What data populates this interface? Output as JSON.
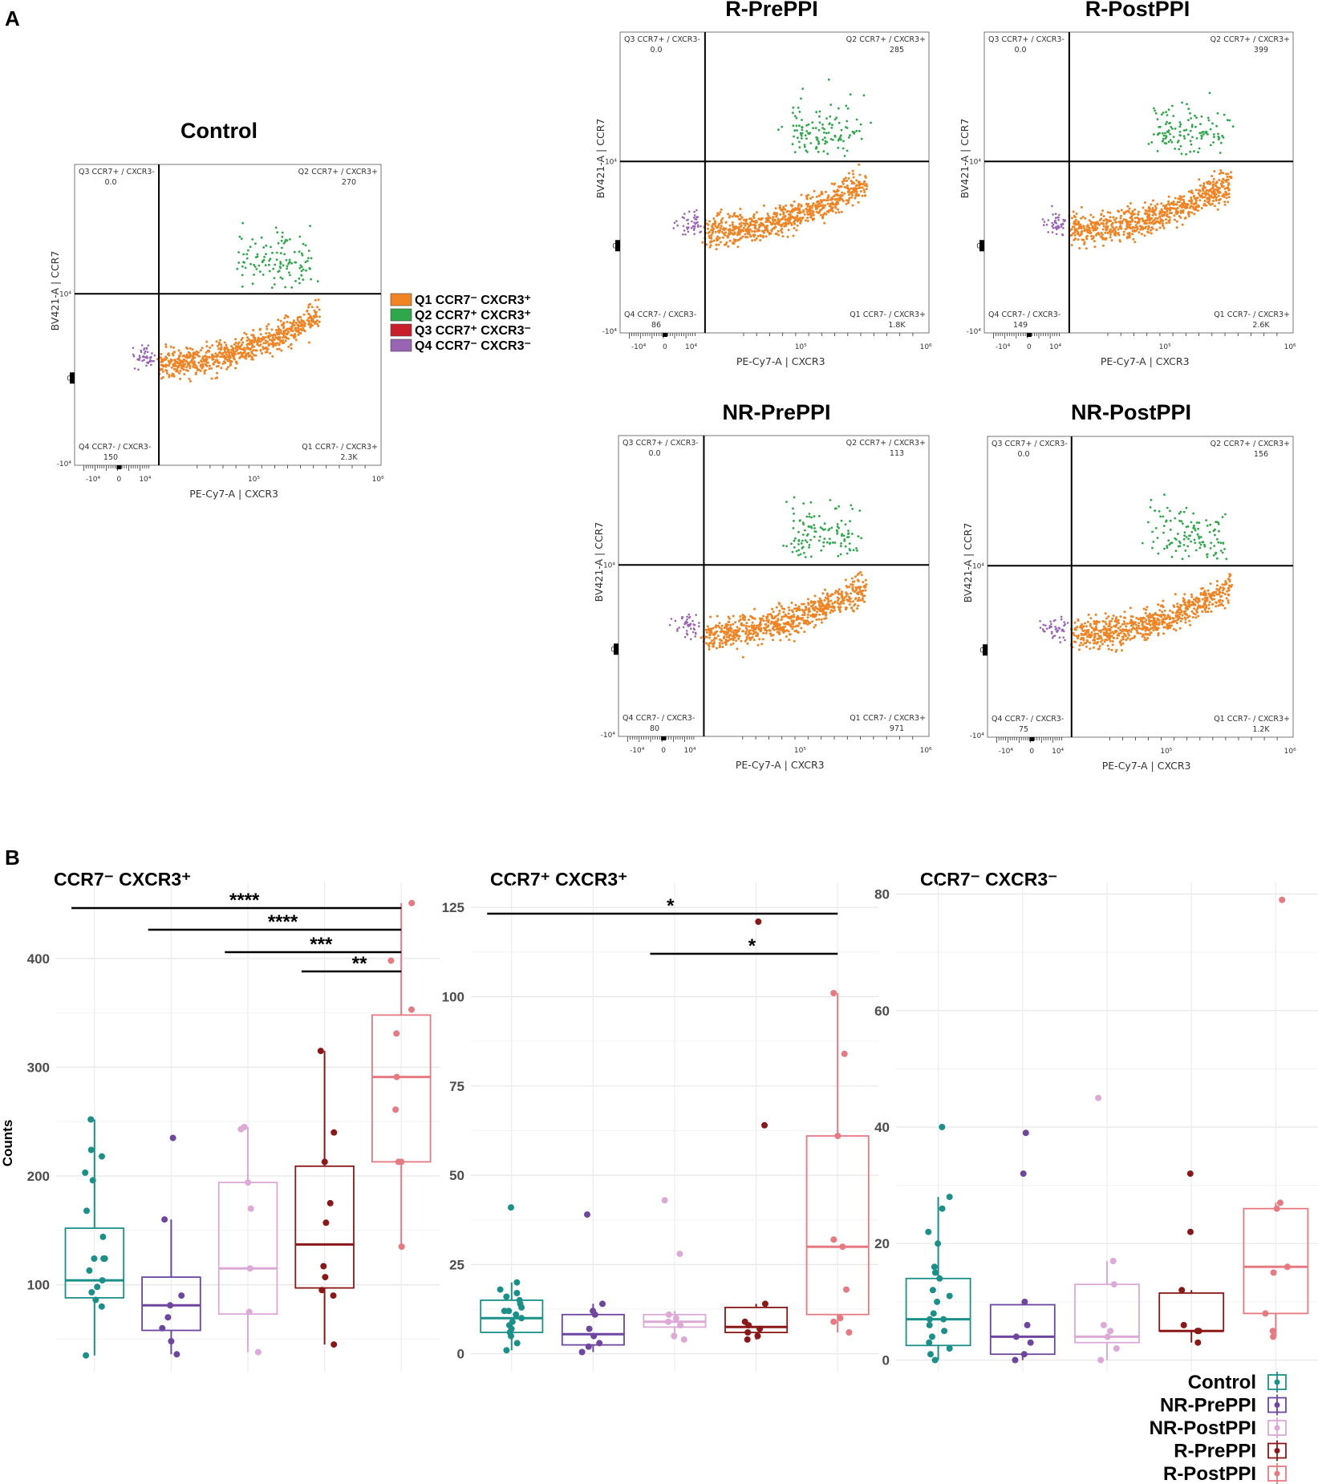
{
  "panel_labels": {
    "a": "A",
    "b": "B"
  },
  "flow": {
    "x_axis_label": "PE-Cy7-A  |  CXCR3",
    "y_axis_label": "BV421-A  |  CCR7",
    "x_ticks": [
      "-10⁴",
      "0",
      "10⁴",
      "10⁵",
      "10⁶"
    ],
    "y_ticks": [
      "10⁴",
      "0",
      "-10⁴"
    ],
    "quadrant_names": {
      "q1": "Q1 CCR7- / CXCR3+",
      "q2": "Q2 CCR7+ / CXCR3+",
      "q3": "Q3 CCR7+ / CXCR3-",
      "q4": "Q4 CCR7- / CXCR3-"
    },
    "colors": {
      "q1": "#F28322",
      "q2": "#2EA84A",
      "q3": "#C8202A",
      "q4": "#9A64B4"
    },
    "legend": [
      {
        "label": "Q1 CCR7⁻ CXCR3⁺",
        "color": "#F28322"
      },
      {
        "label": "Q2 CCR7⁺ CXCR3⁺",
        "color": "#2EA84A"
      },
      {
        "label": "Q3 CCR7⁺ CXCR3⁻",
        "color": "#C8202A"
      },
      {
        "label": "Q4 CCR7⁻ CXCR3⁻",
        "color": "#9A64B4"
      }
    ],
    "plots": [
      {
        "id": "control",
        "title": "Control",
        "counts": {
          "q1": "2.3K",
          "q2": "270",
          "q3": "0.0",
          "q4": "150"
        }
      },
      {
        "id": "r-preppi",
        "title": "R-PrePPI",
        "counts": {
          "q1": "1.8K",
          "q2": "285",
          "q3": "0.0",
          "q4": "86"
        }
      },
      {
        "id": "r-postppi",
        "title": "R-PostPPI",
        "counts": {
          "q1": "2.6K",
          "q2": "399",
          "q3": "0.0",
          "q4": "149"
        }
      },
      {
        "id": "nr-preppi",
        "title": "NR-PrePPI",
        "counts": {
          "q1": "971",
          "q2": "113",
          "q3": "0.0",
          "q4": "80"
        }
      },
      {
        "id": "nr-postppi",
        "title": "NR-PostPPI",
        "counts": {
          "q1": "1.2K",
          "q2": "156",
          "q3": "0.0",
          "q4": "75"
        }
      }
    ]
  },
  "chart_data": [
    {
      "type": "box",
      "title": "CCR7⁻ CXCR3⁺",
      "ylabel": "Counts",
      "ylim": [
        20,
        470
      ],
      "yticks": [
        100,
        200,
        300,
        400
      ],
      "categories": [
        "Control",
        "NR-PrePPI",
        "NR-PostPPI",
        "R-PrePPI",
        "R-PostPPI"
      ],
      "boxes": [
        {
          "q1": 88,
          "median": 104,
          "q3": 152,
          "whisker_low": 35,
          "whisker_high": 252,
          "points": [
            35,
            80,
            86,
            93,
            98,
            104,
            113,
            124,
            124,
            124,
            144,
            168,
            196,
            203,
            218,
            224,
            252
          ]
        },
        {
          "q1": 58,
          "median": 81,
          "q3": 107,
          "whisker_low": 36,
          "whisker_high": 160,
          "points": [
            36,
            48,
            60,
            70,
            81,
            90,
            160,
            235
          ]
        },
        {
          "q1": 73,
          "median": 115,
          "q3": 194,
          "whisker_low": 38,
          "whisker_high": 245,
          "points": [
            38,
            75,
            115,
            170,
            194,
            243,
            245
          ]
        },
        {
          "q1": 97,
          "median": 137,
          "q3": 209,
          "whisker_low": 45,
          "whisker_high": 315,
          "points": [
            45,
            90,
            95,
            107,
            117,
            157,
            175,
            213,
            240,
            315
          ]
        },
        {
          "q1": 213,
          "median": 291,
          "q3": 348,
          "whisker_low": 135,
          "whisker_high": 451,
          "points": [
            135,
            213,
            213,
            261,
            291,
            331,
            353,
            398,
            451
          ]
        }
      ],
      "significance": [
        {
          "label": "****",
          "from": 0,
          "to": 4
        },
        {
          "label": "****",
          "from": 1,
          "to": 4
        },
        {
          "label": "***",
          "from": 2,
          "to": 4
        },
        {
          "label": "**",
          "from": 3,
          "to": 4
        }
      ]
    },
    {
      "type": "box",
      "title": "CCR7⁺ CXCR3⁺",
      "ylim": [
        -5,
        132
      ],
      "yticks": [
        0,
        25,
        50,
        75,
        100,
        125
      ],
      "categories": [
        "Control",
        "NR-PrePPI",
        "NR-PostPPI",
        "R-PrePPI",
        "R-PostPPI"
      ],
      "boxes": [
        {
          "q1": 6,
          "median": 10,
          "q3": 15,
          "whisker_low": 1,
          "whisker_high": 20,
          "points": [
            1,
            3,
            5,
            6,
            7,
            8,
            9,
            10,
            11,
            12,
            12,
            13,
            14,
            15,
            16,
            17,
            18,
            20,
            41
          ]
        },
        {
          "q1": 2.5,
          "median": 5.5,
          "q3": 11,
          "whisker_low": 0.5,
          "whisker_high": 14,
          "points": [
            0.5,
            2,
            3,
            5,
            7,
            11,
            12,
            14,
            39
          ]
        },
        {
          "q1": 7.5,
          "median": 9,
          "q3": 11,
          "whisker_low": 4,
          "whisker_high": 12,
          "points": [
            4,
            5,
            8,
            9,
            10,
            11,
            28,
            43
          ]
        },
        {
          "q1": 6,
          "median": 7.5,
          "q3": 13,
          "whisker_low": 4,
          "whisker_high": 14,
          "points": [
            4,
            5,
            6,
            7,
            8,
            9,
            14,
            64,
            121
          ]
        },
        {
          "q1": 11,
          "median": 30,
          "q3": 61,
          "whisker_low": 6,
          "whisker_high": 101,
          "points": [
            6,
            9,
            10,
            18,
            30,
            32,
            61,
            84,
            101
          ]
        }
      ],
      "significance": [
        {
          "label": "*",
          "from": 0,
          "to": 4
        },
        {
          "label": "*",
          "from": 2,
          "to": 4
        }
      ]
    },
    {
      "type": "box",
      "title": "CCR7⁻ CXCR3⁻",
      "ylim": [
        -2,
        82
      ],
      "yticks": [
        0,
        20,
        40,
        60,
        80
      ],
      "categories": [
        "Control",
        "NR-PrePPI",
        "NR-PostPPI",
        "R-PrePPI",
        "R-PostPPI"
      ],
      "boxes": [
        {
          "q1": 2.5,
          "median": 7,
          "q3": 14,
          "whisker_low": 0,
          "whisker_high": 28,
          "points": [
            0,
            1,
            2,
            3,
            4,
            5,
            6,
            7,
            7,
            8,
            10,
            11,
            12,
            14,
            15,
            16,
            20,
            22,
            26,
            28,
            40
          ]
        },
        {
          "q1": 1,
          "median": 4,
          "q3": 9.5,
          "whisker_low": 0,
          "whisker_high": 10,
          "points": [
            0,
            1,
            3,
            4,
            6,
            10,
            32,
            39
          ]
        },
        {
          "q1": 3,
          "median": 4,
          "q3": 13,
          "whisker_low": 0,
          "whisker_high": 17,
          "points": [
            0,
            2,
            4,
            5,
            6,
            13,
            17,
            45
          ]
        },
        {
          "q1": 5,
          "median": 5,
          "q3": 11.5,
          "whisker_low": 3,
          "whisker_high": 12,
          "points": [
            3,
            5,
            5,
            6,
            12,
            22,
            32
          ]
        },
        {
          "q1": 8,
          "median": 16,
          "q3": 26,
          "whisker_low": 4,
          "whisker_high": 27,
          "points": [
            4,
            5,
            8,
            15,
            16,
            26,
            27,
            79
          ]
        }
      ],
      "significance": []
    }
  ],
  "box_legend": [
    {
      "label": "Control",
      "color": "#1B9088"
    },
    {
      "label": "NR-PrePPI",
      "color": "#6E46A0"
    },
    {
      "label": "NR-PostPPI",
      "color": "#DDA9D6"
    },
    {
      "label": "R-PrePPI",
      "color": "#8B1818"
    },
    {
      "label": "R-PostPPI",
      "color": "#E67A80"
    }
  ]
}
